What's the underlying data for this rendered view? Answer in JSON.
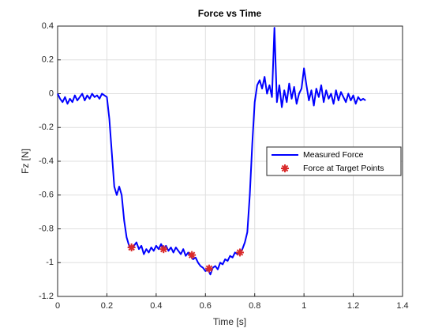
{
  "chart_data": {
    "type": "line",
    "title": "Force vs Time",
    "x_label": "Time [s]",
    "y_label": "Fz [N]",
    "xlim": [
      0,
      1.4
    ],
    "xticks": [
      0,
      0.2,
      0.4,
      0.6,
      0.8,
      1,
      1.2,
      1.4
    ],
    "ylim": [
      -1.2,
      0.4
    ],
    "yticks": [
      -1.2,
      -1,
      -0.8,
      -0.6,
      -0.4,
      -0.2,
      0,
      0.2,
      0.4
    ],
    "grid": true,
    "legend": "east",
    "series": [
      {
        "name": "Measured Force",
        "color": "#0000ff",
        "kind": "line",
        "x": [
          0,
          0.01,
          0.02,
          0.03,
          0.04,
          0.05,
          0.06,
          0.07,
          0.08,
          0.09,
          0.1,
          0.11,
          0.12,
          0.13,
          0.14,
          0.15,
          0.16,
          0.17,
          0.18,
          0.19,
          0.2,
          0.21,
          0.22,
          0.23,
          0.24,
          0.25,
          0.26,
          0.27,
          0.28,
          0.29,
          0.3,
          0.31,
          0.32,
          0.33,
          0.34,
          0.35,
          0.36,
          0.37,
          0.38,
          0.39,
          0.4,
          0.41,
          0.42,
          0.43,
          0.44,
          0.45,
          0.46,
          0.47,
          0.48,
          0.49,
          0.5,
          0.51,
          0.52,
          0.53,
          0.54,
          0.55,
          0.56,
          0.57,
          0.58,
          0.59,
          0.6,
          0.61,
          0.62,
          0.63,
          0.64,
          0.65,
          0.66,
          0.67,
          0.68,
          0.69,
          0.7,
          0.71,
          0.72,
          0.73,
          0.74,
          0.75,
          0.76,
          0.77,
          0.78,
          0.79,
          0.8,
          0.81,
          0.82,
          0.83,
          0.84,
          0.85,
          0.86,
          0.87,
          0.88,
          0.89,
          0.9,
          0.91,
          0.92,
          0.93,
          0.94,
          0.95,
          0.96,
          0.97,
          0.98,
          0.99,
          1,
          1.01,
          1.02,
          1.03,
          1.04,
          1.05,
          1.06,
          1.07,
          1.08,
          1.09,
          1.1,
          1.11,
          1.12,
          1.13,
          1.14,
          1.15,
          1.16,
          1.17,
          1.18,
          1.19,
          1.2,
          1.21,
          1.22,
          1.23,
          1.24,
          1.25
        ],
        "values": [
          0,
          -0.03,
          -0.05,
          -0.02,
          -0.06,
          -0.03,
          -0.05,
          -0.01,
          -0.04,
          -0.02,
          0,
          -0.04,
          -0.01,
          -0.03,
          0,
          -0.02,
          -0.01,
          -0.03,
          0,
          -0.01,
          -0.02,
          -0.15,
          -0.35,
          -0.55,
          -0.6,
          -0.55,
          -0.6,
          -0.75,
          -0.85,
          -0.9,
          -0.92,
          -0.9,
          -0.88,
          -0.92,
          -0.9,
          -0.95,
          -0.92,
          -0.94,
          -0.91,
          -0.93,
          -0.9,
          -0.92,
          -0.89,
          -0.92,
          -0.9,
          -0.93,
          -0.91,
          -0.94,
          -0.91,
          -0.93,
          -0.95,
          -0.92,
          -0.96,
          -0.94,
          -0.96,
          -0.98,
          -0.97,
          -1,
          -1.02,
          -1.03,
          -1.05,
          -1.04,
          -1.07,
          -1.03,
          -1.02,
          -1.04,
          -1,
          -1.01,
          -0.98,
          -0.99,
          -0.96,
          -0.97,
          -0.94,
          -0.95,
          -0.94,
          -0.92,
          -0.88,
          -0.82,
          -0.6,
          -0.3,
          -0.05,
          0.05,
          0.08,
          0.03,
          0.1,
          0,
          0.05,
          -0.02,
          0.39,
          -0.05,
          0.05,
          -0.08,
          0.02,
          -0.05,
          0.06,
          -0.03,
          0.04,
          -0.06,
          0,
          0.03,
          0.15,
          0.05,
          -0.04,
          0.02,
          -0.07,
          0.03,
          -0.02,
          0.05,
          -0.05,
          0.02,
          -0.03,
          0,
          -0.06,
          0.02,
          -0.04,
          0.01,
          -0.02,
          -0.05,
          0,
          -0.04,
          -0.01,
          -0.06,
          -0.02,
          -0.04,
          -0.03,
          -0.04
        ]
      },
      {
        "name": "Force at Target Points",
        "color": "#d92b2b",
        "kind": "marker",
        "x": [
          0.3,
          0.43,
          0.545,
          0.615,
          0.74
        ],
        "values": [
          -0.91,
          -0.92,
          -0.955,
          -1.035,
          -0.94
        ]
      }
    ]
  }
}
